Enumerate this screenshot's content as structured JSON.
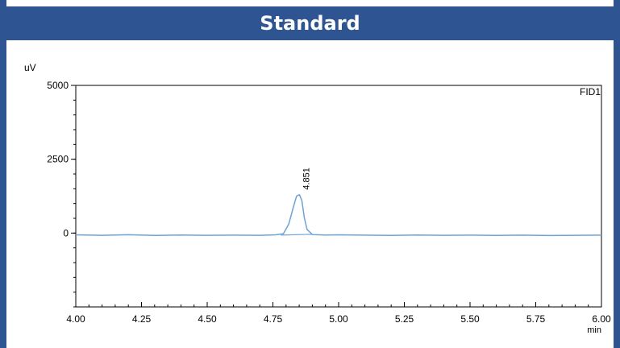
{
  "header": {
    "title": "Standard"
  },
  "chart_data": {
    "type": "line",
    "title": "Standard",
    "xlabel": "min",
    "ylabel": "uV",
    "detector_label": "FID1",
    "xlim": [
      4.0,
      6.0
    ],
    "ylim": [
      -2500,
      5000
    ],
    "x_ticks": [
      "4.00",
      "4.25",
      "4.50",
      "4.75",
      "5.00",
      "5.25",
      "5.50",
      "5.75",
      "6.00"
    ],
    "y_ticks": [
      "5000",
      "2500",
      "0"
    ],
    "series": [
      {
        "color": "#6fa2d4",
        "x": [
          4.0,
          4.1,
          4.2,
          4.3,
          4.4,
          4.5,
          4.6,
          4.7,
          4.76,
          4.79,
          4.81,
          4.83,
          4.84,
          4.851,
          4.86,
          4.87,
          4.88,
          4.9,
          4.95,
          5.0,
          5.1,
          5.2,
          5.3,
          5.4,
          5.5,
          5.6,
          5.7,
          5.8,
          5.9,
          6.0
        ],
        "y": [
          -60,
          -75,
          -55,
          -80,
          -65,
          -75,
          -70,
          -75,
          -60,
          -20,
          300,
          950,
          1250,
          1300,
          1100,
          500,
          120,
          -50,
          -65,
          -60,
          -70,
          -80,
          -65,
          -75,
          -70,
          -80,
          -70,
          -85,
          -75,
          -70
        ]
      }
    ],
    "peaks": [
      {
        "label": "4.851",
        "x": 4.851,
        "y": 1300
      }
    ],
    "baseline_segment": {
      "x": [
        4.78,
        4.9
      ],
      "y": [
        -70,
        -40
      ]
    },
    "grid": false
  }
}
